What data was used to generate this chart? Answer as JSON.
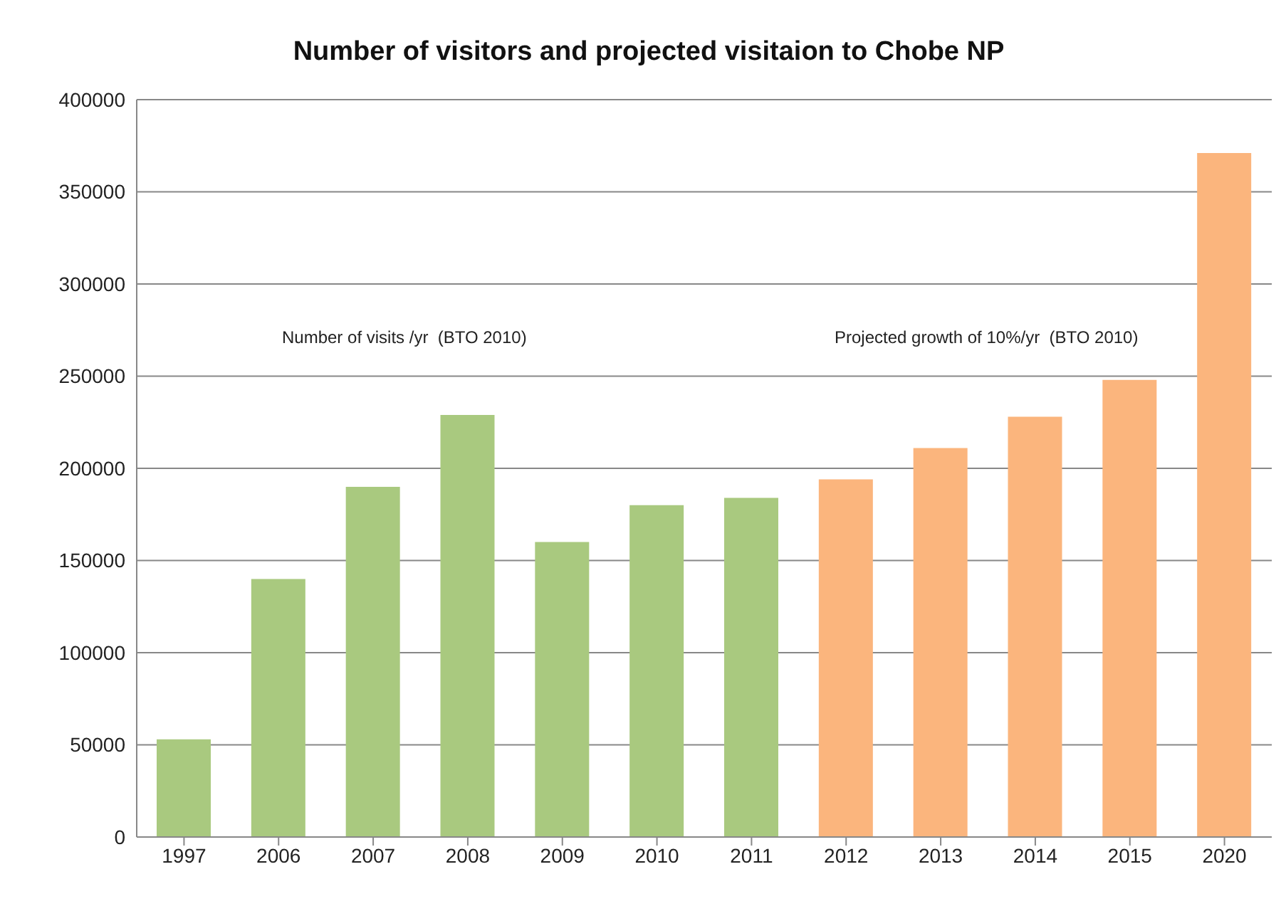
{
  "chart_data": {
    "type": "bar",
    "title": "Number of visitors and projected visitaion to Chobe NP",
    "categories": [
      "1997",
      "2006",
      "2007",
      "2008",
      "2009",
      "2010",
      "2011",
      "2012",
      "2013",
      "2014",
      "2015",
      "2020"
    ],
    "values": [
      53000,
      140000,
      190000,
      229000,
      160000,
      180000,
      184000,
      194000,
      211000,
      228000,
      248000,
      371000
    ],
    "colors": [
      "#a9c97f",
      "#a9c97f",
      "#a9c97f",
      "#a9c97f",
      "#a9c97f",
      "#a9c97f",
      "#a9c97f",
      "#fbb57d",
      "#fbb57d",
      "#fbb57d",
      "#fbb57d",
      "#fbb57d"
    ],
    "ylim": [
      0,
      400000
    ],
    "yticks": [
      0,
      50000,
      100000,
      150000,
      200000,
      250000,
      300000,
      350000,
      400000
    ],
    "grid": "y",
    "legend": false,
    "annotations": [
      "Number of visits /yr  (BTO 2010)",
      "Projected growth of 10%/yr  (BTO 2010)"
    ]
  }
}
